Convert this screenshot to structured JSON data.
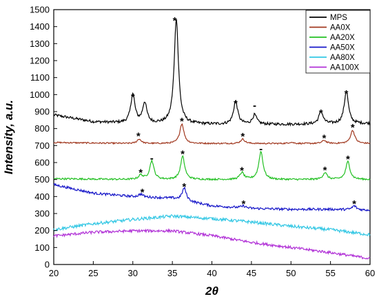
{
  "chart_data": {
    "type": "line",
    "xlabel": "2θ",
    "ylabel": "Intensity, a.u.",
    "xlim": [
      20,
      60
    ],
    "ylim": [
      0,
      1500
    ],
    "xticks": [
      20,
      25,
      30,
      35,
      40,
      45,
      50,
      55,
      60
    ],
    "yticks": [
      0,
      100,
      200,
      300,
      400,
      500,
      600,
      700,
      800,
      900,
      1000,
      1100,
      1200,
      1300,
      1400,
      1500
    ],
    "grid": false,
    "legend_position": "top-right",
    "series": [
      {
        "name": "MPS",
        "color": "#000000",
        "baseline": [
          [
            20,
            880
          ],
          [
            25,
            840
          ],
          [
            30,
            830
          ],
          [
            40,
            825
          ],
          [
            50,
            825
          ],
          [
            60,
            830
          ]
        ],
        "peaks": [
          [
            30.0,
            1000
          ],
          [
            31.5,
            950
          ],
          [
            35.5,
            1450
          ],
          [
            43.0,
            960
          ],
          [
            45.4,
            880
          ],
          [
            53.8,
            900
          ],
          [
            57.0,
            1020
          ]
        ],
        "noise": 8
      },
      {
        "name": "AA0X",
        "color": "#a0371e",
        "baseline": [
          [
            20,
            718
          ],
          [
            30,
            712
          ],
          [
            40,
            712
          ],
          [
            50,
            712
          ],
          [
            60,
            712
          ]
        ],
        "peaks": [
          [
            30.8,
            738
          ],
          [
            36.2,
            828
          ],
          [
            43.9,
            738
          ],
          [
            50.0,
            720
          ],
          [
            54.2,
            730
          ],
          [
            57.8,
            790
          ]
        ],
        "noise": 4
      },
      {
        "name": "AA20X",
        "color": "#22c022",
        "baseline": [
          [
            20,
            505
          ],
          [
            30,
            500
          ],
          [
            40,
            500
          ],
          [
            50,
            500
          ],
          [
            60,
            500
          ]
        ],
        "peaks": [
          [
            31.0,
            525
          ],
          [
            32.4,
            610
          ],
          [
            36.3,
            635
          ],
          [
            43.8,
            540
          ],
          [
            46.2,
            665
          ],
          [
            54.3,
            540
          ],
          [
            57.2,
            605
          ]
        ],
        "noise": 5
      },
      {
        "name": "AA50X",
        "color": "#1515c8",
        "baseline": [
          [
            20,
            470
          ],
          [
            25,
            420
          ],
          [
            30,
            400
          ],
          [
            35,
            390
          ],
          [
            40,
            345
          ],
          [
            45,
            330
          ],
          [
            50,
            325
          ],
          [
            55,
            325
          ],
          [
            60,
            320
          ]
        ],
        "peaks": [
          [
            31.0,
            415
          ],
          [
            36.5,
            450
          ],
          [
            44.0,
            345
          ],
          [
            58.0,
            345
          ]
        ],
        "noise": 7
      },
      {
        "name": "AA80X",
        "color": "#33c7e4",
        "baseline": [
          [
            20,
            205
          ],
          [
            25,
            240
          ],
          [
            30,
            265
          ],
          [
            35,
            285
          ],
          [
            40,
            270
          ],
          [
            45,
            250
          ],
          [
            50,
            225
          ],
          [
            55,
            205
          ],
          [
            60,
            175
          ]
        ],
        "peaks": [],
        "noise": 9
      },
      {
        "name": "AA100X",
        "color": "#b02fd6",
        "baseline": [
          [
            20,
            168
          ],
          [
            25,
            190
          ],
          [
            30,
            198
          ],
          [
            35,
            198
          ],
          [
            40,
            170
          ],
          [
            45,
            130
          ],
          [
            50,
            100
          ],
          [
            55,
            70
          ],
          [
            60,
            35
          ]
        ],
        "peaks": [],
        "noise": 8
      }
    ],
    "annotations": [
      {
        "text": "*",
        "x": 30.0,
        "y": 990
      },
      {
        "text": "*",
        "x": 35.3,
        "y": 1440
      },
      {
        "text": "*",
        "x": 43.0,
        "y": 950
      },
      {
        "text": "-",
        "x": 45.4,
        "y": 940
      },
      {
        "text": "*",
        "x": 53.8,
        "y": 895
      },
      {
        "text": "*",
        "x": 57.0,
        "y": 1010
      },
      {
        "text": "*",
        "x": 30.7,
        "y": 760
      },
      {
        "text": "*",
        "x": 36.2,
        "y": 848
      },
      {
        "text": "*",
        "x": 43.9,
        "y": 758
      },
      {
        "text": "*",
        "x": 54.2,
        "y": 748
      },
      {
        "text": "*",
        "x": 57.8,
        "y": 810
      },
      {
        "text": "*",
        "x": 31.0,
        "y": 545
      },
      {
        "text": "-",
        "x": 32.4,
        "y": 630
      },
      {
        "text": "*",
        "x": 36.3,
        "y": 655
      },
      {
        "text": "*",
        "x": 43.8,
        "y": 558
      },
      {
        "text": "-",
        "x": 46.2,
        "y": 685
      },
      {
        "text": "*",
        "x": 54.3,
        "y": 560
      },
      {
        "text": "*",
        "x": 57.2,
        "y": 625
      },
      {
        "text": "*",
        "x": 31.2,
        "y": 430
      },
      {
        "text": "*",
        "x": 36.5,
        "y": 462
      },
      {
        "text": "*",
        "x": 44.0,
        "y": 360
      },
      {
        "text": "*",
        "x": 58.0,
        "y": 360
      }
    ]
  }
}
